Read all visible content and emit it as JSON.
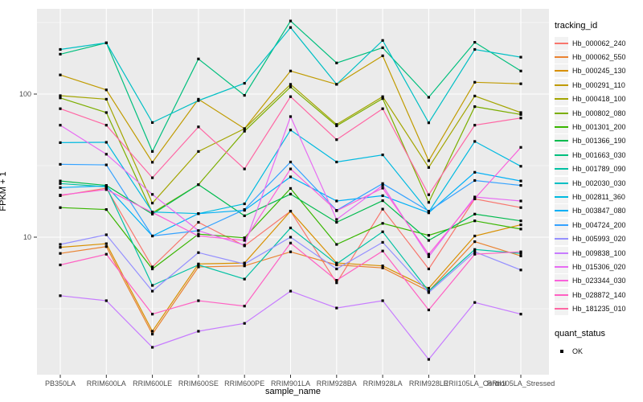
{
  "axes": {
    "x_title": "sample_name",
    "y_title": "FPKM + 1"
  },
  "legend": {
    "tracking_title": "tracking_id",
    "status_title": "quant_status",
    "status_items": [
      {
        "label": "OK",
        "marker": "black-square"
      }
    ]
  },
  "style": {
    "panel_bg": "#EBEBEB",
    "grid_color": "#FFFFFF",
    "tick_color": "#333333",
    "tick_label_color": "#4D4D4D",
    "point_color": "#000000"
  },
  "chart_data": {
    "type": "line",
    "title": "",
    "xlabel": "sample_name",
    "ylabel": "FPKM + 1",
    "y_scale": "log10",
    "ylim": [
      1.05,
      400
    ],
    "y_major_ticks": [
      10,
      100
    ],
    "y_minor_ticks": [
      3.162,
      31.62,
      316.2
    ],
    "grid": true,
    "legend_position": "right",
    "point_marker": "small-black-square",
    "categories": [
      "PB350LA",
      "RRIM600LA",
      "RRIM600LE",
      "RRIM600SE",
      "RRIM600PE",
      "RRIM901LA",
      "RRIM928BA",
      "RRIM928LA",
      "RRIM928LE",
      "RRII105LA_Control",
      "RRII105LA_Stressed"
    ],
    "series": [
      {
        "name": "Hb_000062_240",
        "color": "#F8766D",
        "values": [
          19.5,
          22,
          6.2,
          12.7,
          8.7,
          15.2,
          4.8,
          15.7,
          6,
          18.5,
          16.1
        ]
      },
      {
        "name": "Hb_000062_550",
        "color": "#EA8331",
        "values": [
          7.7,
          8.6,
          2.1,
          6.2,
          6.3,
          7.9,
          6.4,
          6.1,
          4.2,
          9.3,
          7.4
        ]
      },
      {
        "name": "Hb_000245_130",
        "color": "#D89000",
        "values": [
          8.5,
          9,
          2.2,
          6.5,
          6.6,
          15.2,
          6.6,
          6.3,
          4.4,
          10.2,
          12.2
        ]
      },
      {
        "name": "Hb_000291_110",
        "color": "#C09B00",
        "values": [
          136,
          107,
          33.4,
          92,
          57.3,
          145,
          117,
          185,
          34.2,
          121,
          118
        ]
      },
      {
        "name": "Hb_000418_100",
        "color": "#A3A500",
        "values": [
          97.5,
          92,
          17.3,
          39.7,
          57.3,
          117,
          61.3,
          96,
          30.7,
          97,
          74.3
        ]
      },
      {
        "name": "Hb_000802_080",
        "color": "#7CAE00",
        "values": [
          94,
          74.3,
          14.8,
          23.3,
          55,
          112,
          60,
          93,
          17.5,
          81.7,
          72
        ]
      },
      {
        "name": "Hb_001301_200",
        "color": "#39B600",
        "values": [
          16.1,
          15.6,
          6,
          10.5,
          9.9,
          21.9,
          8.9,
          12.5,
          10.3,
          13,
          11.4
        ]
      },
      {
        "name": "Hb_001366_190",
        "color": "#00BB4E",
        "values": [
          24.7,
          23,
          14.5,
          23.3,
          14.1,
          20,
          12.7,
          18,
          9.5,
          14.5,
          13
        ]
      },
      {
        "name": "Hb_001663_030",
        "color": "#00BF7D",
        "values": [
          190,
          228,
          39.7,
          176,
          98,
          324,
          165,
          211,
          95,
          230,
          145
        ]
      },
      {
        "name": "Hb_001789_090",
        "color": "#00C1A3",
        "values": [
          23.7,
          22.5,
          4.6,
          6.4,
          5.1,
          11.6,
          6.5,
          10.9,
          4.2,
          8.2,
          7.7
        ]
      },
      {
        "name": "Hb_002030_030",
        "color": "#00BFC4",
        "values": [
          205,
          228,
          63.3,
          90,
          119,
          292,
          117,
          237,
          63,
          205,
          181
        ]
      },
      {
        "name": "Hb_002811_360",
        "color": "#00BAE0",
        "values": [
          45.8,
          46,
          15,
          14.6,
          17.1,
          56.1,
          33.5,
          37.6,
          15,
          46.7,
          31.3
        ]
      },
      {
        "name": "Hb_003847_080",
        "color": "#00B0F6",
        "values": [
          22.2,
          22.8,
          10.2,
          14.6,
          15.4,
          26.4,
          17.9,
          19.5,
          14.8,
          28.4,
          24.7
        ]
      },
      {
        "name": "Hb_004724_200",
        "color": "#35A2FF",
        "values": [
          32.3,
          32,
          10.2,
          11.1,
          15.6,
          33.5,
          15.4,
          23.7,
          15.2,
          24.9,
          23
        ]
      },
      {
        "name": "Hb_005993_020",
        "color": "#9590FF",
        "values": [
          8.9,
          10.4,
          4.2,
          7.8,
          6.5,
          10,
          6,
          9.2,
          4.1,
          7.9,
          5.9
        ]
      },
      {
        "name": "Hb_009838_100",
        "color": "#C77CFF",
        "values": [
          3.9,
          3.6,
          1.7,
          2.2,
          2.5,
          4.2,
          3.2,
          3.6,
          1.4,
          3.5,
          2.9
        ]
      },
      {
        "name": "Hb_015306_020",
        "color": "#E76BF3",
        "values": [
          60.6,
          38,
          19.9,
          11.1,
          8.8,
          69.6,
          13.3,
          23,
          7.3,
          19.1,
          17.9
        ]
      },
      {
        "name": "Hb_023344_030",
        "color": "#FA62DB",
        "values": [
          19.7,
          21.5,
          14.9,
          10.2,
          9.5,
          30,
          15.3,
          22,
          7.6,
          18.6,
          42.4
        ]
      },
      {
        "name": "Hb_028872_140",
        "color": "#FF61C3",
        "values": [
          6.4,
          7.6,
          2.9,
          3.6,
          3.3,
          9.1,
          5,
          8,
          3.1,
          7.6,
          7.9
        ]
      },
      {
        "name": "Hb_181235_010",
        "color": "#FF67A4",
        "values": [
          79,
          60.6,
          26,
          59,
          30,
          96,
          48,
          79,
          19.8,
          60.6,
          68
        ]
      }
    ]
  }
}
